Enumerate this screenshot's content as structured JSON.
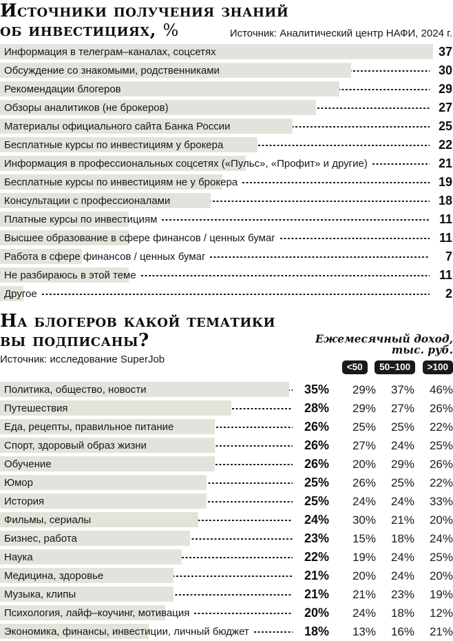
{
  "colors": {
    "bar_fill": "#e4e3db",
    "text": "#111111",
    "badge_bg": "#1a1a1a",
    "badge_text": "#ffffff",
    "leader_dash": "#1b1b1b"
  },
  "chart_data": [
    {
      "type": "bar",
      "orientation": "horizontal",
      "title": "Источники получения знаний об инвестициях, %",
      "title_lines": [
        "Источники получения знаний",
        "об инвестициях,"
      ],
      "title_unit": "%",
      "source": "Источник: Аналитический центр НАФИ, 2024 г.",
      "value_suffix": "",
      "xlim": [
        0,
        38
      ],
      "grid": false,
      "categories": [
        "Информация в телеграм–каналах, соцсетях",
        "Обсуждение со знакомыми, родственниками",
        "Рекомендации блогеров",
        "Обзоры аналитиков (не брокеров)",
        "Материалы официального сайта Банка России",
        "Бесплатные курсы по инвестициям у брокера",
        "Информация в профессиональных соцсетях («Пульс», «Профит» и другие)",
        "Бесплатные курсы по инвестициям не у брокера",
        "Консультации с профессионалами",
        "Платные курсы по инвестициям",
        "Высшее образование в сфере финансов / ценных бумаг",
        "Работа в сфере финансов / ценных бумаг",
        "Не разбираюсь в этой теме",
        "Другое"
      ],
      "values": [
        37,
        30,
        29,
        27,
        25,
        22,
        21,
        19,
        18,
        11,
        11,
        7,
        11,
        2
      ]
    },
    {
      "type": "bar",
      "orientation": "horizontal",
      "title": "На блогеров какой тематики вы подписаны?",
      "title_lines": [
        "На блогеров какой тематики",
        "вы подписаны?"
      ],
      "source": "Источник: исследование SuperJob",
      "value_suffix": "%",
      "xlim": [
        0,
        36
      ],
      "grid": false,
      "legend_title_lines": [
        "Ежемесячный доход,",
        "тыс. руб."
      ],
      "legend": [
        "<50",
        "50–100",
        ">100"
      ],
      "legend_position": "top-right",
      "categories": [
        "Политика, общество, новости",
        "Путешествия",
        "Еда, рецепты, правильное питание",
        "Спорт, здоровый образ жизни",
        "Обучение",
        "Юмор",
        "История",
        "Фильмы, сериалы",
        "Бизнес, работа",
        "Наука",
        "Медицина, здоровье",
        "Музыка, клипы",
        "Психология, лайф–коучинг, мотивация",
        "Экономика, финансы, инвестиции, личный бюджет"
      ],
      "values": [
        35,
        28,
        26,
        26,
        26,
        25,
        25,
        24,
        23,
        22,
        21,
        21,
        20,
        18
      ],
      "series": [
        {
          "name": "<50",
          "values": [
            29,
            29,
            25,
            27,
            20,
            26,
            24,
            30,
            15,
            19,
            20,
            21,
            24,
            13
          ]
        },
        {
          "name": "50–100",
          "values": [
            37,
            27,
            25,
            24,
            29,
            25,
            24,
            21,
            18,
            24,
            24,
            23,
            18,
            16
          ]
        },
        {
          "name": ">100",
          "values": [
            46,
            26,
            22,
            25,
            26,
            22,
            33,
            20,
            24,
            25,
            20,
            19,
            12,
            21
          ]
        }
      ]
    }
  ]
}
